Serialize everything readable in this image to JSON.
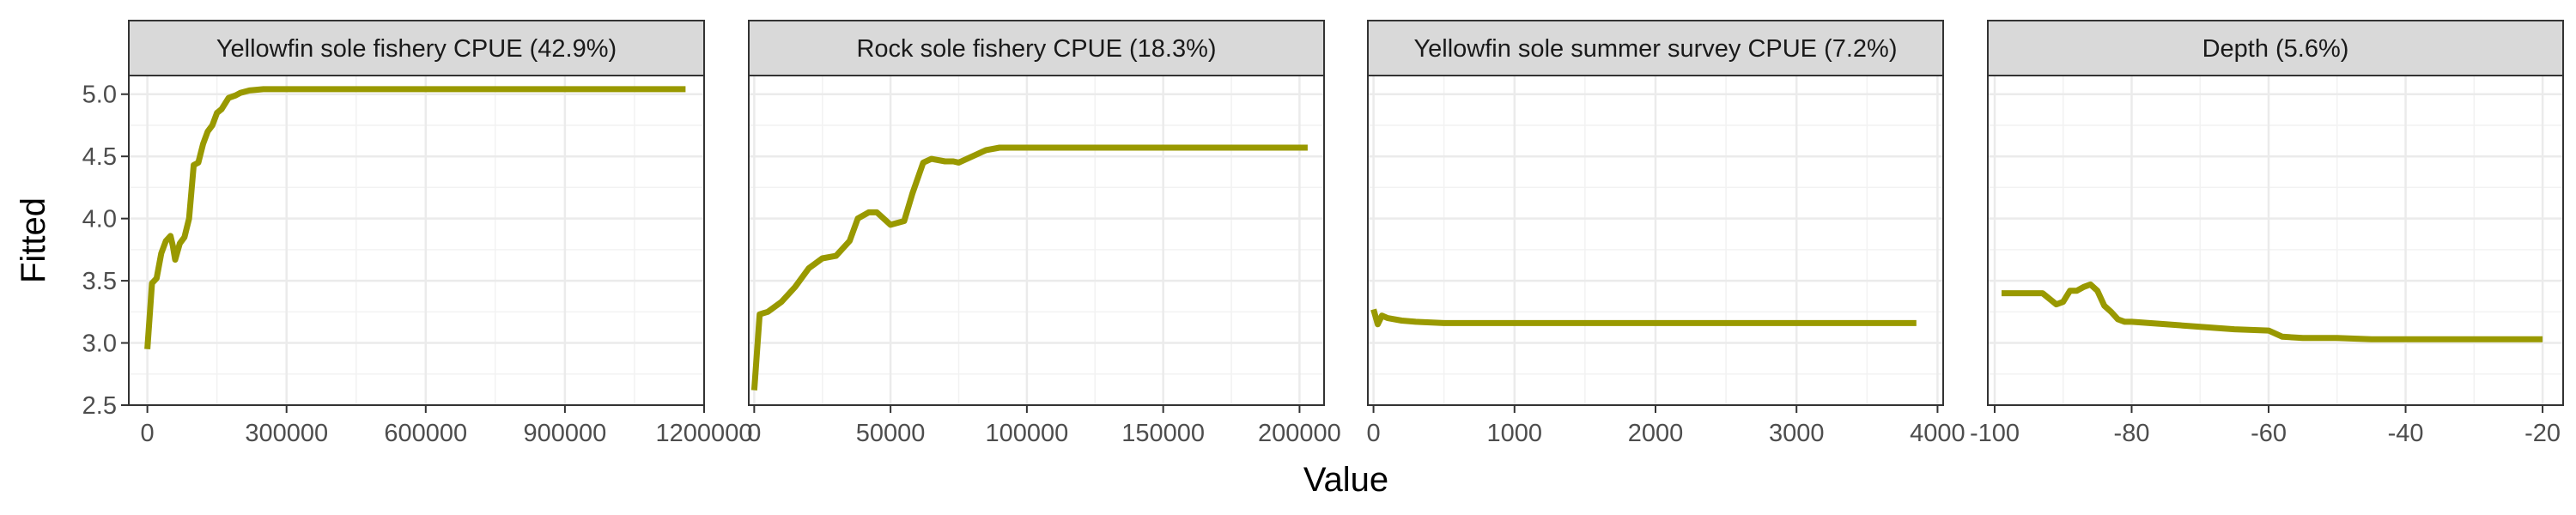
{
  "chart_data": {
    "type": "line",
    "xlabel": "Value",
    "ylabel": "Fitted",
    "ylim": [
      2.5,
      5.15
    ],
    "yticks": [
      2.5,
      3.0,
      3.5,
      4.0,
      4.5,
      5.0
    ],
    "ytick_labels": [
      "2.5",
      "3.0",
      "3.5",
      "4.0",
      "4.5",
      "5.0"
    ],
    "grid": true,
    "line_color": "#999900",
    "panels": [
      {
        "title": "Yellowfin sole fishery CPUE (42.9%)",
        "xlim": [
          -40000,
          1200000
        ],
        "xticks": [
          0,
          300000,
          600000,
          900000,
          1200000
        ],
        "xtick_labels": [
          "0",
          "300000",
          "600000",
          "900000",
          "1200000"
        ],
        "x": [
          0,
          10000,
          20000,
          30000,
          40000,
          50000,
          55000,
          60000,
          70000,
          80000,
          90000,
          100000,
          110000,
          120000,
          130000,
          140000,
          150000,
          160000,
          175000,
          190000,
          200000,
          220000,
          250000,
          300000,
          600000,
          900000,
          1160000
        ],
        "y": [
          2.95,
          3.48,
          3.52,
          3.72,
          3.82,
          3.86,
          3.78,
          3.67,
          3.8,
          3.85,
          4.0,
          4.43,
          4.45,
          4.6,
          4.7,
          4.75,
          4.85,
          4.88,
          4.97,
          4.99,
          5.01,
          5.03,
          5.04,
          5.04,
          5.04,
          5.04,
          5.04
        ]
      },
      {
        "title": "Rock sole fishery CPUE (18.3%)",
        "xlim": [
          -2000,
          209000
        ],
        "xticks": [
          0,
          50000,
          100000,
          150000,
          200000
        ],
        "xtick_labels": [
          "0",
          "50000",
          "100000",
          "150000",
          "200000"
        ],
        "x": [
          0,
          2000,
          5000,
          10000,
          15000,
          20000,
          25000,
          30000,
          35000,
          38000,
          42000,
          45000,
          50000,
          55000,
          58000,
          62000,
          65000,
          70000,
          73000,
          75000,
          80000,
          85000,
          90000,
          95000,
          100000,
          150000,
          203000
        ],
        "y": [
          2.62,
          3.23,
          3.25,
          3.33,
          3.45,
          3.6,
          3.68,
          3.7,
          3.82,
          4.0,
          4.05,
          4.05,
          3.95,
          3.98,
          4.2,
          4.45,
          4.48,
          4.46,
          4.46,
          4.45,
          4.5,
          4.55,
          4.57,
          4.57,
          4.57,
          4.57,
          4.57
        ]
      },
      {
        "title": "Yellowfin sole summer survey CPUE (7.2%)",
        "xlim": [
          -40,
          4040
        ],
        "xticks": [
          0,
          1000,
          2000,
          3000,
          4000
        ],
        "xtick_labels": [
          "0",
          "1000",
          "2000",
          "3000",
          "4000"
        ],
        "x": [
          0,
          30,
          60,
          100,
          200,
          300,
          500,
          800,
          1500,
          2500,
          3850
        ],
        "y": [
          3.27,
          3.15,
          3.22,
          3.2,
          3.18,
          3.17,
          3.16,
          3.16,
          3.16,
          3.16,
          3.16
        ]
      },
      {
        "title": "Depth (5.6%)",
        "xlim": [
          -101,
          -17
        ],
        "xticks": [
          -100,
          -80,
          -60,
          -40,
          -20
        ],
        "xtick_labels": [
          "-100",
          "-80",
          "-60",
          "-40",
          "-20"
        ],
        "x": [
          -99,
          -95,
          -93,
          -91,
          -90,
          -89,
          -88,
          -87,
          -86,
          -85,
          -84,
          -83,
          -82,
          -81,
          -80,
          -75,
          -70,
          -65,
          -60,
          -58,
          -55,
          -50,
          -45,
          -40,
          -30,
          -20
        ],
        "y": [
          3.4,
          3.4,
          3.4,
          3.31,
          3.33,
          3.42,
          3.42,
          3.45,
          3.47,
          3.42,
          3.3,
          3.25,
          3.19,
          3.17,
          3.17,
          3.15,
          3.13,
          3.11,
          3.1,
          3.05,
          3.04,
          3.04,
          3.03,
          3.03,
          3.03,
          3.03
        ]
      }
    ]
  }
}
